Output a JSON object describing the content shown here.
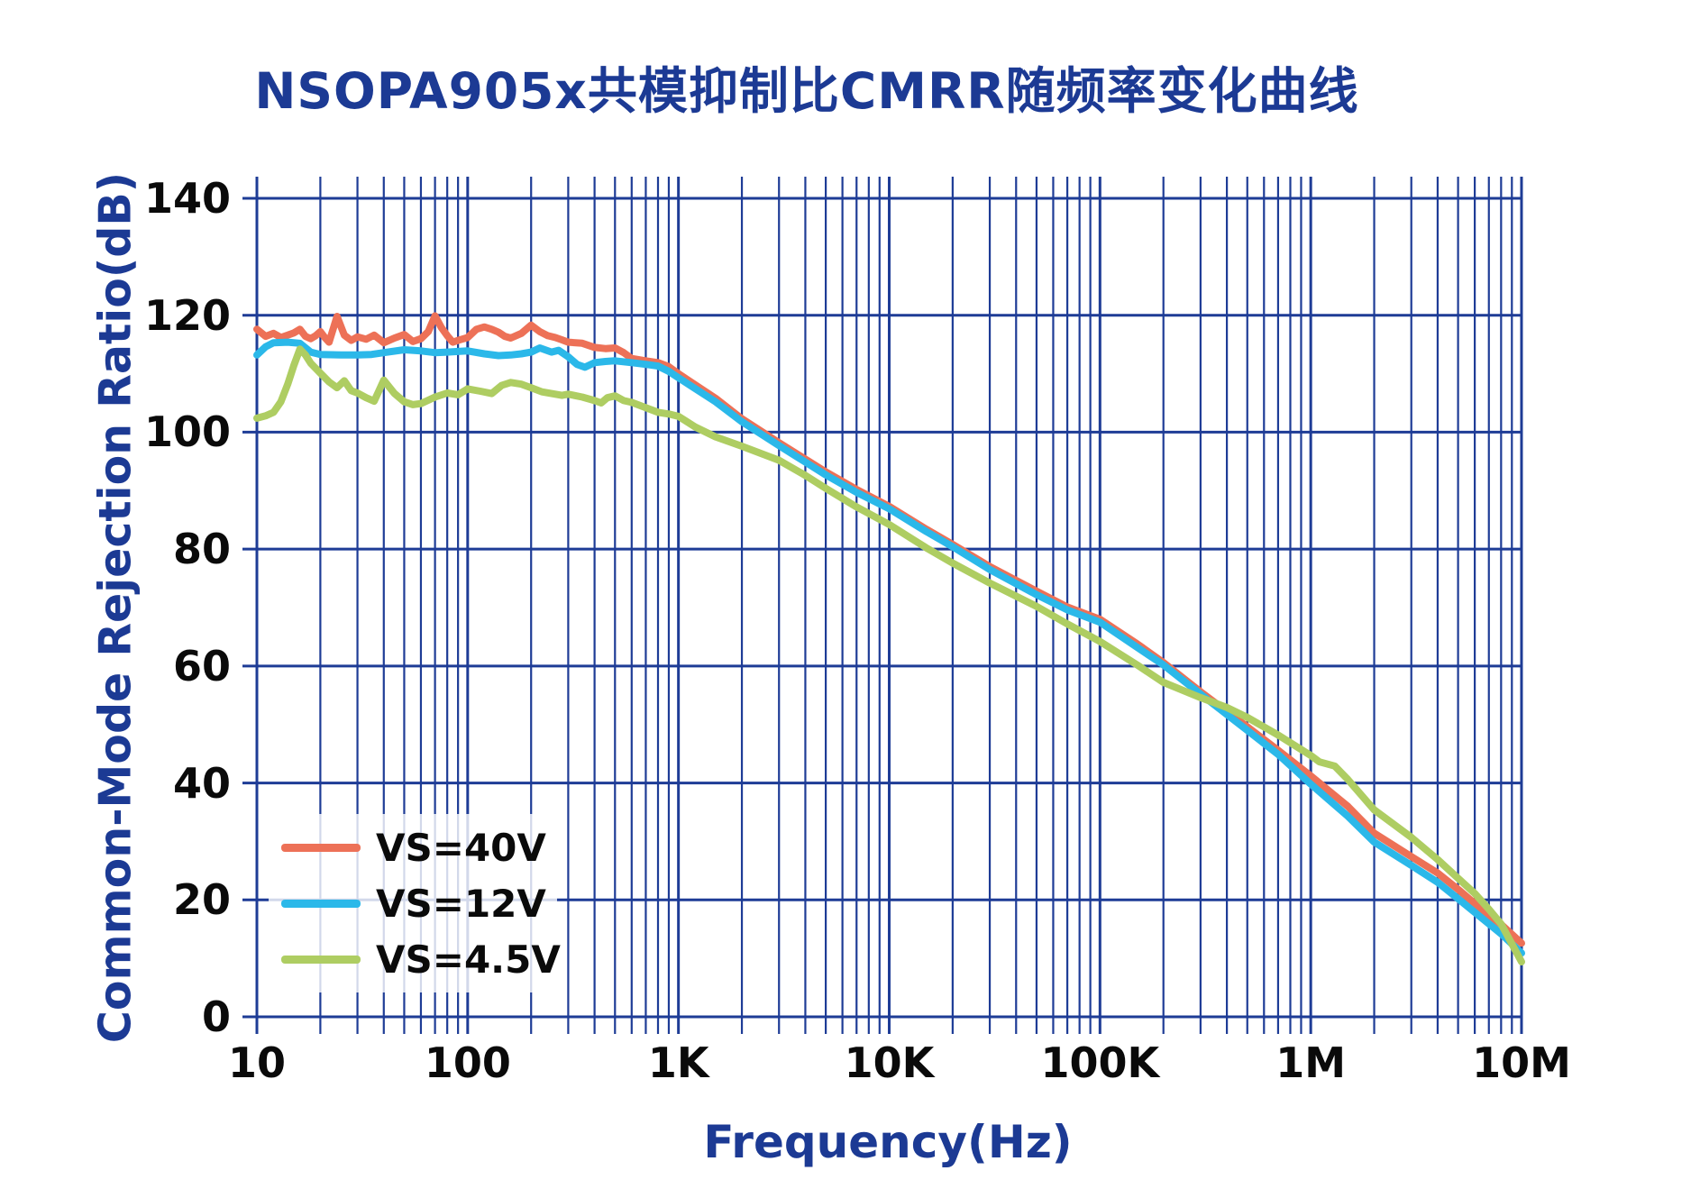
{
  "title": "NSOPA905x共模抑制比CMRR随频率变化曲线",
  "colors": {
    "title_navy": "#1c3a94",
    "grid_navy": "#1e3c96",
    "tick_black": "#0a0a0a",
    "legend_background": "rgba(255,255,255,0.8)",
    "series_orange": "#ed7157",
    "series_cyan": "#2bb8e9",
    "series_green": "#aecd62"
  },
  "chart_data": {
    "type": "line",
    "title": "NSOPA905x共模抑制比CMRR随频率变化曲线",
    "xlabel": "Frequency(Hz)",
    "ylabel": "Common-Mode Rejection Ratio(dB)",
    "x_scale": "log",
    "x_range": [
      10,
      10000000
    ],
    "ylim": [
      0,
      140
    ],
    "grid": true,
    "legend_position": "lower-left",
    "y_ticks": [
      {
        "value": 0,
        "label": "0"
      },
      {
        "value": 20,
        "label": "20"
      },
      {
        "value": 40,
        "label": "40"
      },
      {
        "value": 60,
        "label": "60"
      },
      {
        "value": 80,
        "label": "80"
      },
      {
        "value": 100,
        "label": "100"
      },
      {
        "value": 120,
        "label": "120"
      },
      {
        "value": 140,
        "label": "140"
      }
    ],
    "x_ticks": [
      {
        "value": 10,
        "label": "10"
      },
      {
        "value": 100,
        "label": "100"
      },
      {
        "value": 1000,
        "label": "1K"
      },
      {
        "value": 10000,
        "label": "10K"
      },
      {
        "value": 100000,
        "label": "100K"
      },
      {
        "value": 1000000,
        "label": "1M"
      },
      {
        "value": 10000000,
        "label": "10M"
      }
    ],
    "series": [
      {
        "name": "VS=40V",
        "color": "#ed7157",
        "points": [
          [
            10,
            117.6
          ],
          [
            11,
            116.4
          ],
          [
            12,
            116.9
          ],
          [
            13,
            116.2
          ],
          [
            14,
            116.6
          ],
          [
            15,
            117.0
          ],
          [
            16,
            117.6
          ],
          [
            17,
            116.4
          ],
          [
            18,
            116.0
          ],
          [
            19,
            116.5
          ],
          [
            20,
            117.2
          ],
          [
            21,
            116.2
          ],
          [
            22,
            115.4
          ],
          [
            24,
            119.8
          ],
          [
            26,
            116.6
          ],
          [
            28,
            115.7
          ],
          [
            30,
            116.3
          ],
          [
            33,
            115.9
          ],
          [
            36,
            116.6
          ],
          [
            40,
            115.3
          ],
          [
            45,
            116.1
          ],
          [
            50,
            116.7
          ],
          [
            55,
            115.5
          ],
          [
            60,
            116.0
          ],
          [
            65,
            117.2
          ],
          [
            70,
            119.9
          ],
          [
            75,
            117.9
          ],
          [
            80,
            116.5
          ],
          [
            85,
            115.4
          ],
          [
            90,
            115.7
          ],
          [
            100,
            116.2
          ],
          [
            110,
            117.6
          ],
          [
            120,
            118.0
          ],
          [
            130,
            117.6
          ],
          [
            140,
            117.1
          ],
          [
            150,
            116.4
          ],
          [
            160,
            116.1
          ],
          [
            180,
            116.9
          ],
          [
            200,
            118.3
          ],
          [
            220,
            117.2
          ],
          [
            240,
            116.5
          ],
          [
            260,
            116.2
          ],
          [
            280,
            115.8
          ],
          [
            300,
            115.4
          ],
          [
            350,
            115.2
          ],
          [
            400,
            114.5
          ],
          [
            450,
            114.3
          ],
          [
            500,
            114.4
          ],
          [
            550,
            113.6
          ],
          [
            600,
            112.6
          ],
          [
            700,
            112.2
          ],
          [
            800,
            111.9
          ],
          [
            900,
            111.2
          ],
          [
            1000,
            110.0
          ],
          [
            1500,
            105.8
          ],
          [
            2000,
            102.3
          ],
          [
            3000,
            98.2
          ],
          [
            5000,
            93.2
          ],
          [
            7000,
            90.2
          ],
          [
            10000,
            87.3
          ],
          [
            15000,
            83.4
          ],
          [
            20000,
            80.8
          ],
          [
            30000,
            77.0
          ],
          [
            50000,
            72.8
          ],
          [
            70000,
            70.1
          ],
          [
            100000,
            68.0
          ],
          [
            150000,
            63.8
          ],
          [
            200000,
            60.6
          ],
          [
            300000,
            55.6
          ],
          [
            500000,
            49.6
          ],
          [
            700000,
            45.6
          ],
          [
            1000000,
            41.2
          ],
          [
            1500000,
            36.0
          ],
          [
            2000000,
            31.4
          ],
          [
            3000000,
            27.4
          ],
          [
            4000000,
            24.6
          ],
          [
            5000000,
            21.8
          ],
          [
            7000000,
            17.3
          ],
          [
            8000000,
            15.8
          ],
          [
            10000000,
            12.6
          ]
        ]
      },
      {
        "name": "VS=12V",
        "color": "#2bb8e9",
        "points": [
          [
            10,
            113.2
          ],
          [
            11,
            114.6
          ],
          [
            12,
            115.3
          ],
          [
            14,
            115.4
          ],
          [
            16,
            115.2
          ],
          [
            18,
            113.7
          ],
          [
            20,
            113.3
          ],
          [
            25,
            113.2
          ],
          [
            30,
            113.2
          ],
          [
            35,
            113.3
          ],
          [
            40,
            113.6
          ],
          [
            50,
            114.1
          ],
          [
            60,
            113.9
          ],
          [
            70,
            113.6
          ],
          [
            80,
            113.7
          ],
          [
            90,
            113.8
          ],
          [
            100,
            113.9
          ],
          [
            120,
            113.4
          ],
          [
            140,
            113.1
          ],
          [
            160,
            113.2
          ],
          [
            180,
            113.4
          ],
          [
            200,
            113.7
          ],
          [
            220,
            114.4
          ],
          [
            250,
            113.7
          ],
          [
            270,
            114.0
          ],
          [
            300,
            112.9
          ],
          [
            330,
            111.6
          ],
          [
            360,
            111.1
          ],
          [
            400,
            111.9
          ],
          [
            450,
            112.1
          ],
          [
            500,
            112.2
          ],
          [
            600,
            111.9
          ],
          [
            700,
            111.6
          ],
          [
            800,
            111.3
          ],
          [
            900,
            110.4
          ],
          [
            1000,
            109.3
          ],
          [
            1500,
            105.2
          ],
          [
            2000,
            101.8
          ],
          [
            3000,
            97.7
          ],
          [
            5000,
            92.7
          ],
          [
            7000,
            89.7
          ],
          [
            10000,
            86.9
          ],
          [
            15000,
            83.0
          ],
          [
            20000,
            80.4
          ],
          [
            30000,
            76.5
          ],
          [
            50000,
            72.2
          ],
          [
            70000,
            69.6
          ],
          [
            100000,
            67.5
          ],
          [
            150000,
            63.2
          ],
          [
            200000,
            60.2
          ],
          [
            300000,
            55.2
          ],
          [
            500000,
            49.0
          ],
          [
            700000,
            44.9
          ],
          [
            1000000,
            39.8
          ],
          [
            1500000,
            34.3
          ],
          [
            2000000,
            29.9
          ],
          [
            3000000,
            25.9
          ],
          [
            4000000,
            23.0
          ],
          [
            5000000,
            20.2
          ],
          [
            7000000,
            15.9
          ],
          [
            8000000,
            14.2
          ],
          [
            10000000,
            10.9
          ]
        ]
      },
      {
        "name": "VS=4.5V",
        "color": "#aecd62",
        "points": [
          [
            10,
            102.4
          ],
          [
            11,
            102.8
          ],
          [
            12,
            103.4
          ],
          [
            13,
            105.2
          ],
          [
            14,
            108.2
          ],
          [
            15,
            111.5
          ],
          [
            16,
            114.2
          ],
          [
            17,
            113.2
          ],
          [
            18,
            111.8
          ],
          [
            20,
            110.1
          ],
          [
            22,
            108.6
          ],
          [
            24,
            107.6
          ],
          [
            26,
            108.8
          ],
          [
            28,
            107.1
          ],
          [
            30,
            106.7
          ],
          [
            33,
            105.9
          ],
          [
            36,
            105.3
          ],
          [
            40,
            108.9
          ],
          [
            45,
            106.6
          ],
          [
            50,
            105.2
          ],
          [
            55,
            104.7
          ],
          [
            60,
            104.9
          ],
          [
            70,
            106.0
          ],
          [
            80,
            106.7
          ],
          [
            90,
            106.4
          ],
          [
            100,
            107.4
          ],
          [
            115,
            107.0
          ],
          [
            130,
            106.6
          ],
          [
            145,
            108.0
          ],
          [
            160,
            108.5
          ],
          [
            180,
            108.2
          ],
          [
            200,
            107.6
          ],
          [
            225,
            106.9
          ],
          [
            250,
            106.6
          ],
          [
            280,
            106.3
          ],
          [
            300,
            106.5
          ],
          [
            350,
            106.0
          ],
          [
            400,
            105.4
          ],
          [
            430,
            105.0
          ],
          [
            460,
            105.9
          ],
          [
            500,
            106.2
          ],
          [
            550,
            105.4
          ],
          [
            600,
            105.1
          ],
          [
            700,
            104.2
          ],
          [
            800,
            103.4
          ],
          [
            900,
            103.1
          ],
          [
            1000,
            102.7
          ],
          [
            1200,
            100.9
          ],
          [
            1500,
            99.2
          ],
          [
            2000,
            97.6
          ],
          [
            3000,
            95.2
          ],
          [
            4000,
            92.6
          ],
          [
            5000,
            90.4
          ],
          [
            7000,
            87.2
          ],
          [
            10000,
            84.2
          ],
          [
            15000,
            80.2
          ],
          [
            20000,
            77.6
          ],
          [
            30000,
            74.2
          ],
          [
            50000,
            70.2
          ],
          [
            70000,
            67.2
          ],
          [
            100000,
            64.2
          ],
          [
            150000,
            60.2
          ],
          [
            200000,
            57.2
          ],
          [
            300000,
            54.6
          ],
          [
            400000,
            52.9
          ],
          [
            500000,
            51.2
          ],
          [
            700000,
            48.2
          ],
          [
            1000000,
            44.7
          ],
          [
            1100000,
            43.6
          ],
          [
            1300000,
            42.9
          ],
          [
            1500000,
            40.6
          ],
          [
            2000000,
            35.4
          ],
          [
            3000000,
            30.7
          ],
          [
            4000000,
            26.9
          ],
          [
            5000000,
            23.7
          ],
          [
            6000000,
            21.1
          ],
          [
            7000000,
            18.4
          ],
          [
            8000000,
            15.9
          ],
          [
            10000000,
            9.4
          ]
        ]
      }
    ]
  }
}
